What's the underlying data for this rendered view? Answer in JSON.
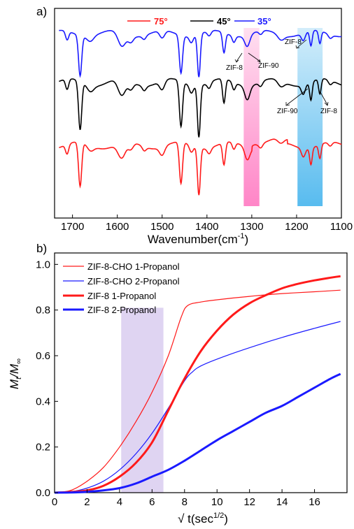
{
  "chart_data": [
    {
      "type": "line",
      "panel_label": "a)",
      "xlabel": "Wavenumber(cm",
      "xlabel_sup": "-1",
      "xlabel_tail": ")",
      "x_ticks": [
        1700,
        1600,
        1500,
        1400,
        1300,
        1200,
        1100
      ],
      "xlim": [
        1740,
        1100
      ],
      "legend": [
        {
          "name": "75°",
          "color": "#ff1a1a"
        },
        {
          "name": "45°",
          "color": "#000000"
        },
        {
          "name": "35°",
          "color": "#1a1aff"
        }
      ],
      "bands": [
        {
          "from": 1318,
          "to": 1283,
          "color": "#ff7fc4"
        },
        {
          "from": 1198,
          "to": 1142,
          "color": "#4fb8ee"
        }
      ],
      "annotations": [
        {
          "text": "ZIF-8"
        },
        {
          "text": "ZIF-90"
        },
        {
          "text": "ZIF-8"
        },
        {
          "text": "ZIF-90"
        },
        {
          "text": "ZIF-8"
        }
      ],
      "series": [
        {
          "name": "35°",
          "color": "#1a1aff"
        },
        {
          "name": "45°",
          "color": "#000000"
        },
        {
          "name": "75°",
          "color": "#ff1a1a"
        }
      ]
    },
    {
      "type": "line",
      "panel_label": "b)",
      "ylabel": "M",
      "ylabel_sub1": "t",
      "ylabel_mid": "/M",
      "ylabel_sub2": "∞",
      "xlabel": "√ t(sec",
      "xlabel_sup": "1/2",
      "xlabel_tail": ")",
      "xlim": [
        0,
        18
      ],
      "ylim": [
        0,
        1.05
      ],
      "x_ticks": [
        0,
        2,
        4,
        6,
        8,
        10,
        12,
        14,
        16
      ],
      "y_ticks": [
        0.0,
        0.2,
        0.4,
        0.6,
        0.8,
        1.0
      ],
      "y_tick_labels": [
        "0.0",
        "0.2",
        "0.4",
        "0.6",
        "0.8",
        "1.0"
      ],
      "shaded_region": {
        "x": [
          4.1,
          6.7
        ],
        "y": [
          0,
          0.81
        ],
        "color": "#d9cdf0"
      },
      "legend_position": "top-left",
      "series": [
        {
          "name": "ZIF-8-CHO 1-Propanol",
          "color": "#ff1a1a",
          "width": 1.2,
          "x": [
            0,
            1,
            2,
            3,
            4,
            5,
            6,
            7,
            7.8,
            8.2,
            9,
            10,
            12,
            14,
            16,
            17.6
          ],
          "y": [
            0,
            0.01,
            0.05,
            0.11,
            0.2,
            0.31,
            0.44,
            0.6,
            0.77,
            0.82,
            0.835,
            0.845,
            0.86,
            0.872,
            0.88,
            0.887
          ]
        },
        {
          "name": "ZIF-8-CHO 2-Propanol",
          "color": "#1a1aff",
          "width": 1.2,
          "x": [
            0,
            1,
            2,
            3,
            4,
            5,
            6,
            7,
            8,
            8.5,
            9,
            10,
            12,
            14,
            16,
            17.6
          ],
          "y": [
            0,
            0.004,
            0.02,
            0.05,
            0.1,
            0.17,
            0.26,
            0.37,
            0.49,
            0.53,
            0.555,
            0.585,
            0.635,
            0.68,
            0.72,
            0.75
          ]
        },
        {
          "name": "ZIF-8 1-Propanol",
          "color": "#ff1a1a",
          "width": 3,
          "x": [
            0,
            1,
            2,
            3,
            4,
            5,
            6,
            7,
            8,
            9,
            10,
            11,
            12,
            13,
            14,
            15,
            16,
            17,
            17.6
          ],
          "y": [
            0,
            0.003,
            0.01,
            0.03,
            0.07,
            0.13,
            0.22,
            0.36,
            0.5,
            0.62,
            0.71,
            0.78,
            0.83,
            0.865,
            0.895,
            0.915,
            0.93,
            0.942,
            0.948
          ]
        },
        {
          "name": "ZIF-8 2-Propanol",
          "color": "#1a1aff",
          "width": 3,
          "x": [
            0,
            1,
            2,
            3,
            4,
            5,
            6,
            7,
            8,
            9,
            10,
            11,
            12,
            13,
            14,
            15,
            16,
            17,
            17.6
          ],
          "y": [
            0,
            0.001,
            0.004,
            0.01,
            0.02,
            0.04,
            0.07,
            0.1,
            0.14,
            0.185,
            0.23,
            0.27,
            0.31,
            0.35,
            0.38,
            0.42,
            0.46,
            0.5,
            0.52
          ]
        }
      ]
    }
  ]
}
